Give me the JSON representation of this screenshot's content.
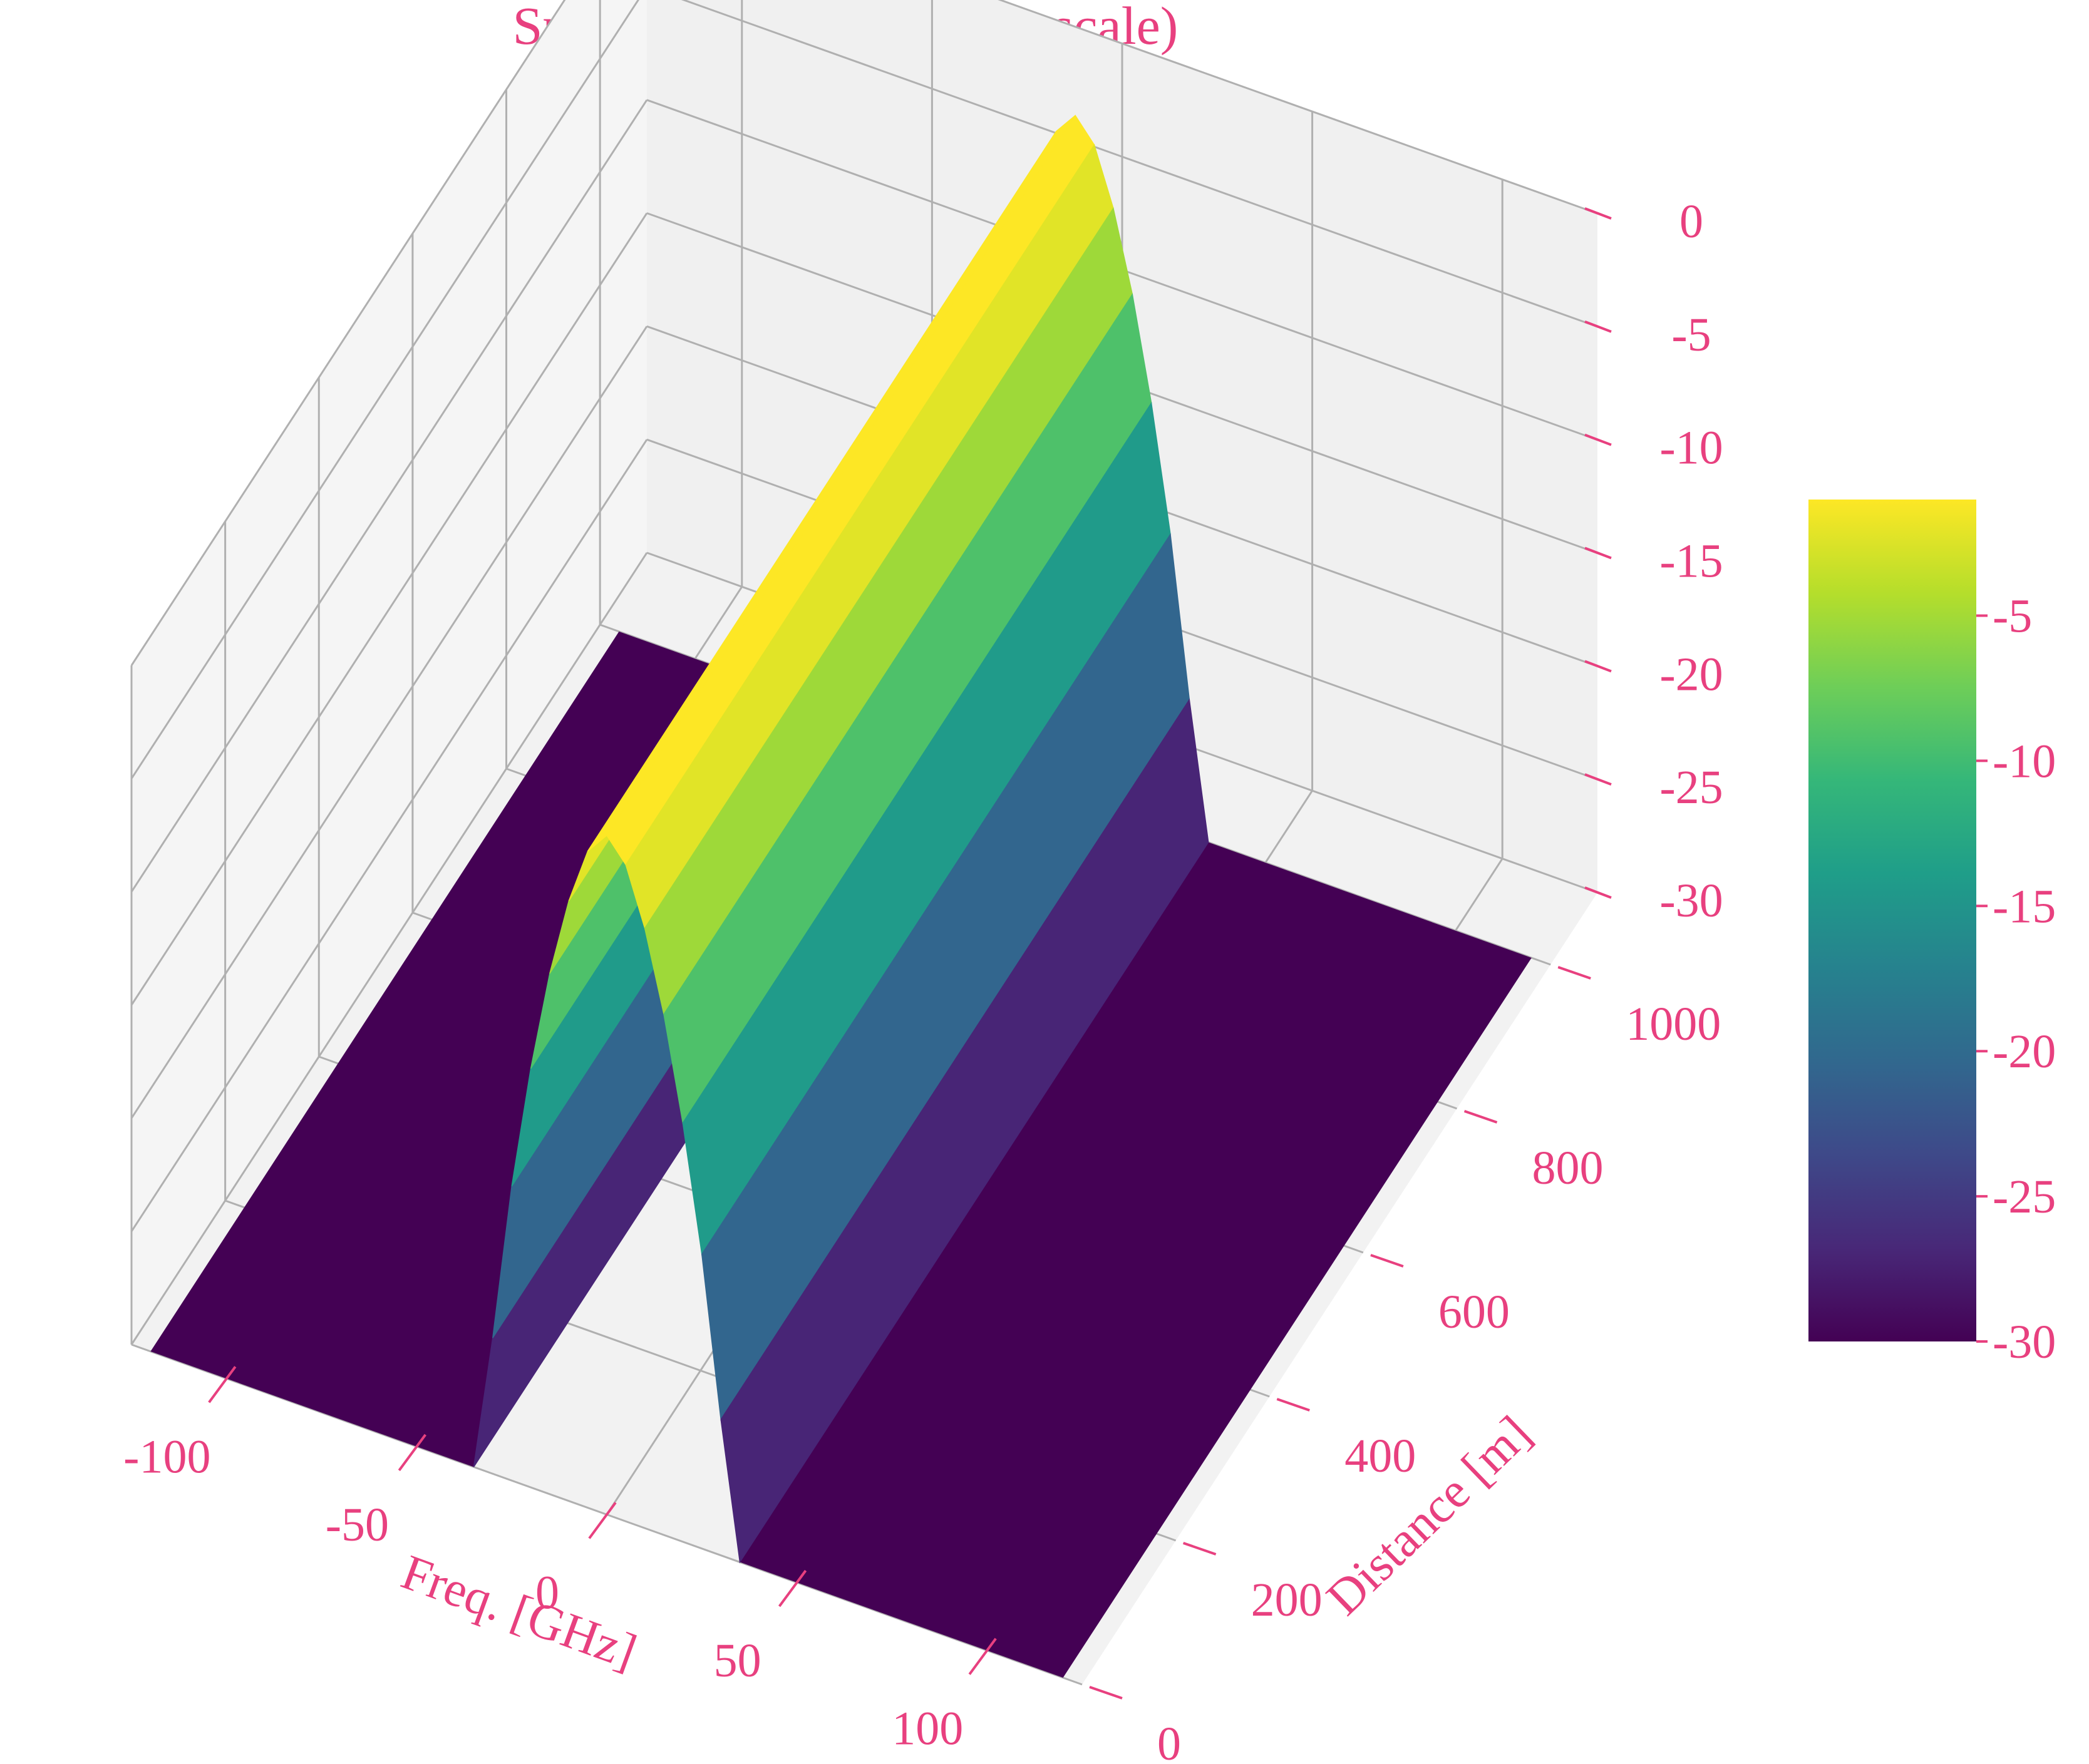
{
  "colors": {
    "text": "#e8407f",
    "pane_left": "#f5f5f5",
    "pane_back": "#f0f0f0",
    "pane_floor": "#f2f2f2",
    "grid": "#b0b0b0",
    "colormap": [
      "#440154",
      "#482878",
      "#3e4989",
      "#31688e",
      "#26828e",
      "#1f9e89",
      "#35b779",
      "#6ece58",
      "#b5de2b",
      "#fde725"
    ]
  },
  "chart_data": {
    "type": "surface",
    "colormap": "viridis",
    "title": "Spectrum Evolution (dB scale)",
    "xlabel": "Freq. [GHz]",
    "ylabel": "Distance [m]",
    "zlabel": "",
    "x_ticks": [
      "-100",
      "-50",
      "0",
      "50",
      "100"
    ],
    "y_ticks": [
      "0",
      "200",
      "400",
      "600",
      "800",
      "1000"
    ],
    "z_ticks": [
      "0",
      "-5",
      "-10",
      "-15",
      "-20",
      "-25",
      "-30"
    ],
    "xlim": [
      -125,
      125
    ],
    "ylim": [
      0,
      1100
    ],
    "zlim": [
      -30,
      0
    ],
    "x_range": [
      -120,
      120
    ],
    "y_range": [
      0,
      1000
    ],
    "z_floor": -30,
    "peak_db": 0,
    "peak_freq": 0,
    "level_at_freq": [
      {
        "freq": -35,
        "db": -30
      },
      {
        "freq": -30,
        "db": -24
      },
      {
        "freq": -25,
        "db": -17
      },
      {
        "freq": -20,
        "db": -11.5
      },
      {
        "freq": -15,
        "db": -7
      },
      {
        "freq": -10,
        "db": -3.5
      },
      {
        "freq": -5,
        "db": -1
      },
      {
        "freq": 0,
        "db": 0
      },
      {
        "freq": 5,
        "db": -1
      },
      {
        "freq": 10,
        "db": -3.5
      },
      {
        "freq": 15,
        "db": -7
      },
      {
        "freq": 20,
        "db": -11.5
      },
      {
        "freq": 25,
        "db": -17
      },
      {
        "freq": 30,
        "db": -24
      },
      {
        "freq": 35,
        "db": -30
      }
    ],
    "grid": true,
    "colorbar": {
      "ticks": [
        "-5",
        "-10",
        "-15",
        "-20",
        "-25",
        "-30"
      ],
      "range": [
        -30,
        -1
      ],
      "placement": "right"
    }
  }
}
